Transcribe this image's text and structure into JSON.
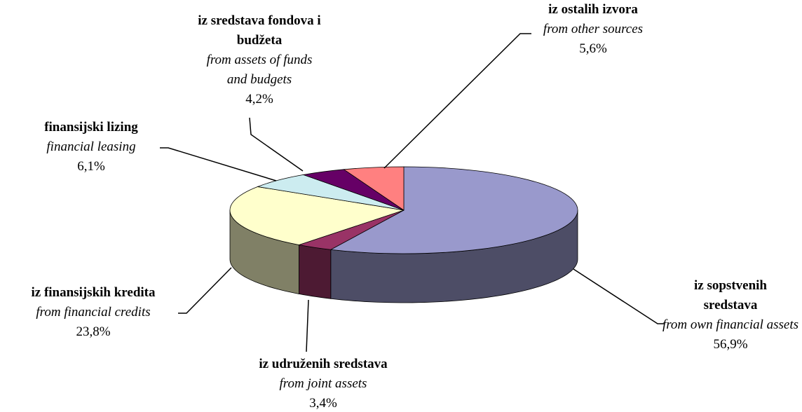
{
  "chart_data": {
    "type": "pie3d",
    "categories": [
      "iz sopstvenih sredstava",
      "iz udruženih sredstava",
      "iz finansijskih kredita",
      "finansijski lizing",
      "iz sredstava fondova i budžeta",
      "iz ostalih izvora"
    ],
    "subcategories": [
      "from own financial assets",
      "from joint assets",
      "from financial credits",
      "financial leasing",
      "from assets of funds and budgets",
      "from other sources"
    ],
    "values": [
      56.9,
      3.4,
      23.8,
      6.1,
      4.2,
      5.6
    ],
    "value_labels": [
      "56,9%",
      "3,4%",
      "23,8%",
      "6,1%",
      "4,2%",
      "5,6%"
    ],
    "colors": [
      "#9999cc",
      "#993366",
      "#ffffcc",
      "#ccecf0",
      "#660066",
      "#ff8080"
    ]
  }
}
